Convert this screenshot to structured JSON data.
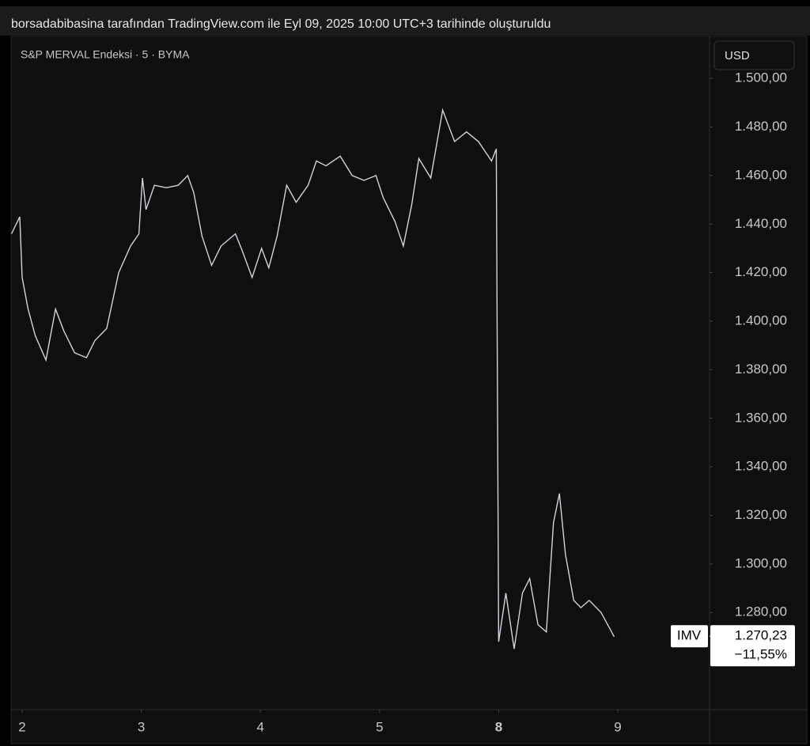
{
  "header": "borsadabibasina tarafından TradingView.com ile Eyl 09, 2025 10:00 UTC+3 tarihinde oluşturuldu",
  "chart_data": {
    "type": "line",
    "currency": "USD",
    "x": [
      -0.09,
      -0.02,
      0,
      0.05,
      0.11,
      0.2,
      0.28,
      0.35,
      0.44,
      0.54,
      0.61,
      0.71,
      0.81,
      0.91,
      0.98,
      1.01,
      1.04,
      1.11,
      1.21,
      1.31,
      1.39,
      1.44,
      1.51,
      1.59,
      1.67,
      1.79,
      1.84,
      1.93,
      2.01,
      2.07,
      2.14,
      2.22,
      2.3,
      2.4,
      2.47,
      2.55,
      2.67,
      2.77,
      2.87,
      2.97,
      3.03,
      3.13,
      3.2,
      3.27,
      3.33,
      3.43,
      3.53,
      3.63,
      3.73,
      3.83,
      3.94,
      3.98,
      4.0,
      4.06,
      4.13,
      4.2,
      4.26,
      4.33,
      4.4,
      4.46,
      4.51,
      4.56,
      4.63,
      4.69,
      4.76,
      4.86,
      4.97
    ],
    "series": [
      {
        "name": "S&P MERVAL Endeksi · 5 · BYMA",
        "color": "#d1d4dc",
        "values": [
          1436,
          1443,
          1418,
          1405,
          1394,
          1384,
          1405,
          1396,
          1387,
          1385,
          1392,
          1397,
          1420,
          1431,
          1436,
          1459,
          1446,
          1456,
          1455,
          1456,
          1460,
          1453,
          1435,
          1423,
          1431,
          1436,
          1430,
          1418,
          1430,
          1422,
          1435,
          1456,
          1449,
          1456,
          1466,
          1464,
          1468,
          1460,
          1458,
          1460,
          1451,
          1441,
          1431,
          1448,
          1467,
          1459,
          1487,
          1474,
          1478,
          1474,
          1466,
          1471,
          1268,
          1288,
          1265,
          1288,
          1294,
          1275,
          1272,
          1317,
          1329,
          1304,
          1285,
          1282,
          1285,
          1280,
          1270
        ]
      }
    ],
    "xlim": [
      -0.093,
      5.77
    ],
    "xticks": [
      {
        "value": 0,
        "label": "2"
      },
      {
        "value": 1,
        "label": "3"
      },
      {
        "value": 2,
        "label": "4"
      },
      {
        "value": 3,
        "label": "5"
      },
      {
        "value": 4,
        "label": "8"
      },
      {
        "value": 5,
        "label": "9"
      }
    ],
    "ylim": [
      1240,
      1517
    ],
    "yticks": [
      {
        "value": 1280,
        "label": "1.280,00"
      },
      {
        "value": 1300,
        "label": "1.300,00"
      },
      {
        "value": 1320,
        "label": "1.320,00"
      },
      {
        "value": 1340,
        "label": "1.340,00"
      },
      {
        "value": 1360,
        "label": "1.360,00"
      },
      {
        "value": 1380,
        "label": "1.380,00"
      },
      {
        "value": 1400,
        "label": "1.400,00"
      },
      {
        "value": 1420,
        "label": "1.420,00"
      },
      {
        "value": 1440,
        "label": "1.440,00"
      },
      {
        "value": 1460,
        "label": "1.460,00"
      },
      {
        "value": 1480,
        "label": "1.480,00"
      },
      {
        "value": 1500,
        "label": "1.500,00"
      }
    ],
    "price_label": {
      "symbol": "IMV",
      "value": 1270.23,
      "label": "1.270,23",
      "change": "−11,55%"
    }
  }
}
